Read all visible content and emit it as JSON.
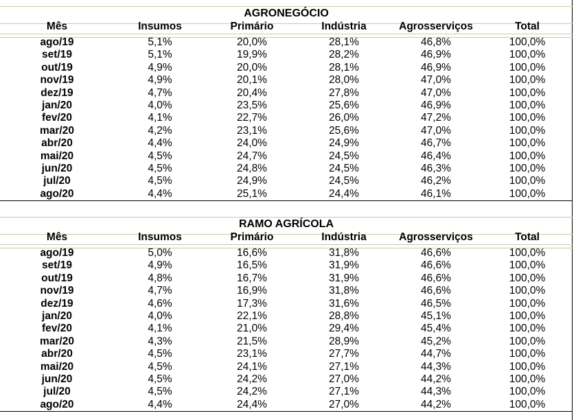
{
  "tables": [
    {
      "title": "AGRONEGÓCIO",
      "headers": [
        "Mês",
        "Insumos",
        "Primário",
        "Indústria",
        "Agrosserviços",
        "Total"
      ],
      "rows": [
        [
          "ago/19",
          "5,1%",
          "20,0%",
          "28,1%",
          "46,8%",
          "100,0%"
        ],
        [
          "set/19",
          "5,1%",
          "19,9%",
          "28,2%",
          "46,9%",
          "100,0%"
        ],
        [
          "out/19",
          "4,9%",
          "20,0%",
          "28,1%",
          "46,9%",
          "100,0%"
        ],
        [
          "nov/19",
          "4,9%",
          "20,1%",
          "28,0%",
          "47,0%",
          "100,0%"
        ],
        [
          "dez/19",
          "4,7%",
          "20,4%",
          "27,8%",
          "47,0%",
          "100,0%"
        ],
        [
          "jan/20",
          "4,0%",
          "23,5%",
          "25,6%",
          "46,9%",
          "100,0%"
        ],
        [
          "fev/20",
          "4,1%",
          "22,7%",
          "26,0%",
          "47,2%",
          "100,0%"
        ],
        [
          "mar/20",
          "4,2%",
          "23,1%",
          "25,6%",
          "47,0%",
          "100,0%"
        ],
        [
          "abr/20",
          "4,4%",
          "24,0%",
          "24,9%",
          "46,7%",
          "100,0%"
        ],
        [
          "mai/20",
          "4,5%",
          "24,7%",
          "24,5%",
          "46,4%",
          "100,0%"
        ],
        [
          "jun/20",
          "4,5%",
          "24,8%",
          "24,5%",
          "46,3%",
          "100,0%"
        ],
        [
          "jul/20",
          "4,5%",
          "24,9%",
          "24,5%",
          "46,2%",
          "100,0%"
        ],
        [
          "ago/20",
          "4,4%",
          "25,1%",
          "24,4%",
          "46,1%",
          "100,0%"
        ]
      ]
    },
    {
      "title": "RAMO AGRÍCOLA",
      "headers": [
        "Mês",
        "Insumos",
        "Primário",
        "Indústria",
        "Agrosserviços",
        "Total"
      ],
      "rows": [
        [
          "ago/19",
          "5,0%",
          "16,6%",
          "31,8%",
          "46,6%",
          "100,0%"
        ],
        [
          "set/19",
          "4,9%",
          "16,5%",
          "31,9%",
          "46,6%",
          "100,0%"
        ],
        [
          "out/19",
          "4,8%",
          "16,7%",
          "31,9%",
          "46,6%",
          "100,0%"
        ],
        [
          "nov/19",
          "4,7%",
          "16,9%",
          "31,8%",
          "46,6%",
          "100,0%"
        ],
        [
          "dez/19",
          "4,6%",
          "17,3%",
          "31,6%",
          "46,5%",
          "100,0%"
        ],
        [
          "jan/20",
          "4,0%",
          "22,1%",
          "28,8%",
          "45,1%",
          "100,0%"
        ],
        [
          "fev/20",
          "4,1%",
          "21,0%",
          "29,4%",
          "45,4%",
          "100,0%"
        ],
        [
          "mar/20",
          "4,3%",
          "21,5%",
          "28,9%",
          "45,2%",
          "100,0%"
        ],
        [
          "abr/20",
          "4,5%",
          "23,1%",
          "27,7%",
          "44,7%",
          "100,0%"
        ],
        [
          "mai/20",
          "4,5%",
          "24,1%",
          "27,1%",
          "44,3%",
          "100,0%"
        ],
        [
          "jun/20",
          "4,5%",
          "24,2%",
          "27,0%",
          "44,2%",
          "100,0%"
        ],
        [
          "jul/20",
          "4,5%",
          "24,2%",
          "27,1%",
          "44,3%",
          "100,0%"
        ],
        [
          "ago/20",
          "4,4%",
          "24,4%",
          "27,0%",
          "44,2%",
          "100,0%"
        ]
      ]
    }
  ]
}
